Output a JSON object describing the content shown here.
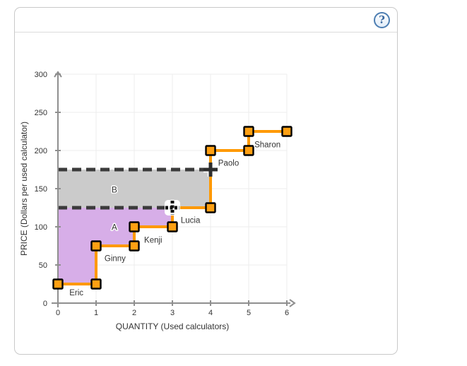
{
  "card": {
    "help_label": "?"
  },
  "chart_data": {
    "type": "step",
    "title": "",
    "xlabel": "QUANTITY (Used calculators)",
    "ylabel": "PRICE (Dollars per used calculator)",
    "xlim": [
      0,
      6
    ],
    "ylim": [
      0,
      300
    ],
    "x_ticks": [
      0,
      1,
      2,
      3,
      4,
      5,
      6
    ],
    "y_ticks": [
      0,
      50,
      100,
      150,
      200,
      250,
      300
    ],
    "grid": true,
    "steps": [
      {
        "name": "Eric",
        "price": 25,
        "from": 0,
        "to": 1,
        "label_at": [
          0.3,
          10
        ]
      },
      {
        "name": "Ginny",
        "price": 75,
        "from": 1,
        "to": 2,
        "label_at": [
          1.22,
          55
        ]
      },
      {
        "name": "Kenji",
        "price": 100,
        "from": 2,
        "to": 3,
        "label_at": [
          2.26,
          79
        ]
      },
      {
        "name": "Lucia",
        "price": 125,
        "from": 3,
        "to": 4,
        "label_at": [
          3.22,
          105
        ]
      },
      {
        "name": "Paolo",
        "price": 200,
        "from": 4,
        "to": 5,
        "label_at": [
          4.2,
          180
        ]
      },
      {
        "name": "Sharon",
        "price": 225,
        "from": 5,
        "to": 6,
        "label_at": [
          5.15,
          204
        ]
      }
    ],
    "price_lines": [
      {
        "price": 175,
        "from": 0,
        "to": 4,
        "selected": false
      },
      {
        "price": 125,
        "from": 0,
        "to": 3,
        "selected": true
      }
    ],
    "regions": [
      {
        "label": "B",
        "color": "#cbcbcb",
        "polygon": [
          [
            0,
            175
          ],
          [
            4,
            175
          ],
          [
            4,
            125
          ],
          [
            0,
            125
          ]
        ],
        "label_at": [
          1.48,
          145
        ]
      },
      {
        "label": "A",
        "color": "#d7aee8",
        "polygon": [
          [
            0,
            125
          ],
          [
            3,
            125
          ],
          [
            3,
            100
          ],
          [
            2,
            100
          ],
          [
            2,
            75
          ],
          [
            1,
            75
          ],
          [
            1,
            25
          ],
          [
            0,
            25
          ]
        ],
        "label_at": [
          1.48,
          96
        ]
      }
    ],
    "colors": {
      "line": "#ff9900",
      "marker_fill": "#ffa013",
      "marker_stroke": "#000000",
      "dashed": "#3b3b3b",
      "handle": "#2e2e2e",
      "grid": "#ececec",
      "axis": "#8f8f8f",
      "text": "#333333"
    }
  }
}
